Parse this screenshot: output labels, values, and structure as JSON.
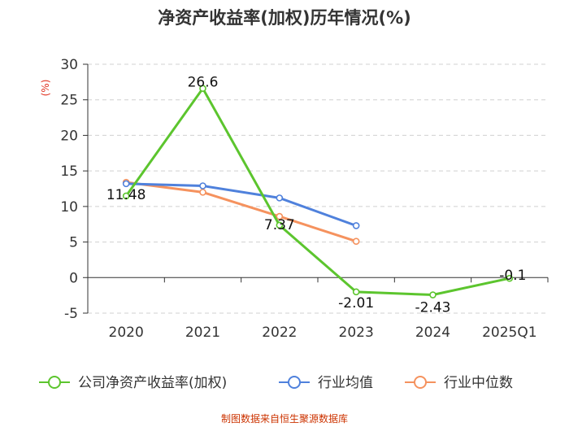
{
  "chart_data": {
    "type": "line",
    "title": "净资产收益率(加权)历年情况(%)",
    "ylabel": "(%)",
    "xlabel": "",
    "categories": [
      "2020",
      "2021",
      "2022",
      "2023",
      "2024",
      "2025Q1"
    ],
    "ylim": [
      -5,
      30
    ],
    "yticks": [
      -5,
      0,
      5,
      10,
      15,
      20,
      25,
      30
    ],
    "grid": true,
    "legend_position": "bottom",
    "series": [
      {
        "name": "公司净资产收益率(加权)",
        "color": "#5cc52e",
        "values": [
          11.48,
          26.6,
          7.37,
          -2.01,
          -2.43,
          -0.1
        ],
        "labels": [
          "11.48",
          "26.6",
          "7.37",
          "-2.01",
          "-2.43",
          "-0.1"
        ]
      },
      {
        "name": "行业均值",
        "color": "#4f81dc",
        "values": [
          13.2,
          12.9,
          11.2,
          7.3,
          null,
          null
        ]
      },
      {
        "name": "行业中位数",
        "color": "#f5925e",
        "values": [
          13.4,
          12.0,
          8.6,
          5.1,
          null,
          null
        ]
      }
    ]
  },
  "source": "制图数据来自恒生聚源数据库"
}
